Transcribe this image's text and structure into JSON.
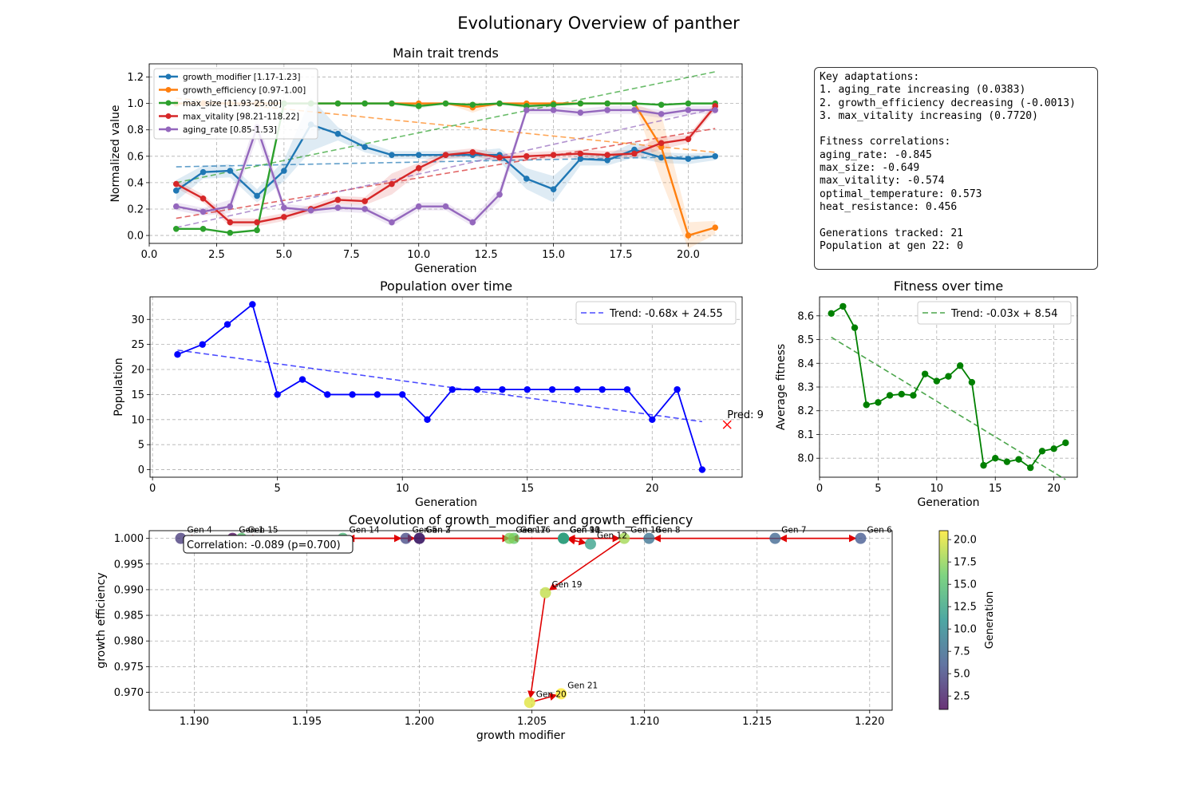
{
  "figure_title": "Evolutionary Overview of panther",
  "summary_lines": [
    "Key adaptations:",
    "1. aging_rate increasing (0.0383)",
    "2. growth_efficiency decreasing (-0.0013)",
    "3. max_vitality increasing (0.7720)",
    "",
    "Fitness correlations:",
    "aging_rate: -0.845",
    "max_size: -0.649",
    "max_vitality: -0.574",
    "optimal_temperature: 0.573",
    "heat_resistance: 0.456",
    "",
    "Generations tracked: 21",
    "Population at gen 22: 0"
  ],
  "chart_data": [
    {
      "id": "traits",
      "type": "line",
      "title": "Main trait trends",
      "xlabel": "Generation",
      "ylabel": "Normalized value",
      "xlim": [
        0,
        22
      ],
      "ylim": [
        -0.06,
        1.3
      ],
      "xticks": [
        0.0,
        2.5,
        5.0,
        7.5,
        10.0,
        12.5,
        15.0,
        17.5,
        20.0
      ],
      "yticks": [
        0.0,
        0.2,
        0.4,
        0.6,
        0.8,
        1.0,
        1.2
      ],
      "grid": true,
      "legend_position": "top-left",
      "x": [
        1,
        2,
        3,
        4,
        5,
        6,
        7,
        8,
        9,
        10,
        11,
        12,
        13,
        14,
        15,
        16,
        17,
        18,
        19,
        20,
        21
      ],
      "series": [
        {
          "name": "growth_modifier [1.17-1.23]",
          "color": "#1f77b4",
          "values": [
            0.34,
            0.48,
            0.49,
            0.3,
            0.49,
            0.84,
            0.77,
            0.67,
            0.61,
            0.61,
            0.61,
            0.61,
            0.61,
            0.43,
            0.35,
            0.58,
            0.57,
            0.65,
            0.59,
            0.58,
            0.6
          ],
          "band": [
            0.08,
            0.05,
            0.05,
            0.05,
            0.08,
            0.2,
            0.05,
            0.04,
            0.03,
            0.03,
            0.03,
            0.03,
            0.05,
            0.08,
            0.1,
            0.05,
            0.04,
            0.06,
            0.04,
            0.04,
            0.03
          ],
          "trend": [
            0.52,
            0.6
          ]
        },
        {
          "name": "growth_efficiency [0.97-1.00]",
          "color": "#ff7f0e",
          "values": [
            1.0,
            1.0,
            1.0,
            1.0,
            1.0,
            1.0,
            1.0,
            1.0,
            1.0,
            1.0,
            1.0,
            0.97,
            1.0,
            1.0,
            1.0,
            1.0,
            1.0,
            1.0,
            0.67,
            0.0,
            0.06
          ],
          "band": [
            0,
            0,
            0,
            0,
            0,
            0,
            0,
            0,
            0,
            0,
            0,
            0.04,
            0,
            0,
            0,
            0,
            0,
            0,
            0.25,
            0.1,
            0.05
          ],
          "trend": [
            1.04,
            0.63
          ]
        },
        {
          "name": "max_size [11.93-25.00]",
          "color": "#2ca02c",
          "values": [
            0.05,
            0.05,
            0.02,
            0.04,
            1.0,
            1.0,
            1.0,
            1.0,
            1.0,
            0.98,
            1.0,
            0.99,
            1.0,
            0.98,
            0.99,
            1.0,
            1.0,
            1.0,
            0.99,
            1.0,
            1.0
          ],
          "band": [
            0,
            0,
            0,
            0,
            0,
            0,
            0,
            0,
            0,
            0.02,
            0,
            0.01,
            0,
            0.02,
            0.01,
            0,
            0,
            0,
            0.01,
            0,
            0
          ],
          "trend": [
            0.4,
            1.24
          ]
        },
        {
          "name": "max_vitality [98.21-118.22]",
          "color": "#d62728",
          "values": [
            0.39,
            0.28,
            0.1,
            0.1,
            0.14,
            0.2,
            0.27,
            0.26,
            0.39,
            0.51,
            0.61,
            0.63,
            0.59,
            0.6,
            0.61,
            0.62,
            0.61,
            0.62,
            0.7,
            0.73,
            0.98
          ],
          "band": [
            0.03,
            0.03,
            0.03,
            0.03,
            0.03,
            0.03,
            0.03,
            0.03,
            0.08,
            0.04,
            0.03,
            0.03,
            0.03,
            0.03,
            0.03,
            0.03,
            0.03,
            0.03,
            0.05,
            0.03,
            0.03
          ],
          "trend": [
            0.13,
            0.81
          ]
        },
        {
          "name": "aging_rate [0.85-1.53]",
          "color": "#9467bd",
          "values": [
            0.22,
            0.18,
            0.22,
            0.82,
            0.21,
            0.19,
            0.21,
            0.2,
            0.1,
            0.22,
            0.22,
            0.1,
            0.31,
            0.95,
            0.95,
            0.93,
            0.95,
            0.95,
            0.92,
            0.95,
            0.95
          ],
          "band": [
            0.03,
            0.03,
            0.05,
            0.08,
            0.03,
            0.03,
            0.03,
            0.03,
            0.03,
            0.03,
            0.03,
            0.03,
            0.05,
            0.03,
            0.03,
            0.03,
            0.03,
            0.03,
            0.03,
            0.03,
            0.03
          ],
          "trend": [
            0.06,
            0.96
          ]
        }
      ]
    },
    {
      "id": "population",
      "type": "line",
      "title": "Population over time",
      "xlabel": "Generation",
      "ylabel": "Population",
      "xlim": [
        -0.1,
        23.6
      ],
      "ylim": [
        -1.5,
        34.5
      ],
      "xticks": [
        0,
        5,
        10,
        15,
        20
      ],
      "yticks": [
        0,
        5,
        10,
        15,
        20,
        25,
        30
      ],
      "grid": true,
      "legend_position": "top-right",
      "x": [
        1,
        2,
        3,
        4,
        5,
        6,
        7,
        8,
        9,
        10,
        11,
        12,
        13,
        14,
        15,
        16,
        17,
        18,
        19,
        20,
        21,
        22
      ],
      "values": [
        23,
        25,
        29,
        33,
        15,
        18,
        15,
        15,
        15,
        15,
        10,
        16,
        16,
        16,
        16,
        16,
        16,
        16,
        16,
        10,
        16,
        0
      ],
      "trend_label": "Trend: -0.68x + 24.55",
      "trend_slope": -0.68,
      "trend_intercept": 24.55,
      "prediction": {
        "x": 23,
        "y": 9,
        "label": "Pred: 9"
      }
    },
    {
      "id": "fitness",
      "type": "line",
      "title": "Fitness over time",
      "xlabel": "Generation",
      "ylabel": "Average fitness",
      "xlim": [
        0,
        22
      ],
      "ylim": [
        7.92,
        8.68
      ],
      "xticks": [
        0,
        5,
        10,
        15,
        20
      ],
      "yticks": [
        8.0,
        8.1,
        8.2,
        8.3,
        8.4,
        8.5,
        8.6
      ],
      "grid": true,
      "legend_position": "top-right",
      "x": [
        1,
        2,
        3,
        4,
        5,
        6,
        7,
        8,
        9,
        10,
        11,
        12,
        13,
        14,
        15,
        16,
        17,
        18,
        19,
        20,
        21
      ],
      "values": [
        8.61,
        8.64,
        8.55,
        8.225,
        8.235,
        8.265,
        8.27,
        8.265,
        8.355,
        8.325,
        8.345,
        8.39,
        8.32,
        7.97,
        8.0,
        7.985,
        7.995,
        7.96,
        8.03,
        8.04,
        8.065
      ],
      "trend_label": "Trend: -0.03x + 8.54",
      "trend_slope": -0.03,
      "trend_intercept": 8.54
    },
    {
      "id": "coevolution",
      "type": "scatter",
      "title": "Coevolution of growth_modifier and growth_efficiency",
      "xlabel": "growth modifier",
      "ylabel": "growth efficiency",
      "xlim": [
        1.188,
        1.221
      ],
      "ylim": [
        0.9665,
        1.0015
      ],
      "xticks": [
        1.19,
        1.195,
        1.2,
        1.205,
        1.21,
        1.215,
        1.22
      ],
      "yticks": [
        0.97,
        0.975,
        0.98,
        0.985,
        0.99,
        0.995,
        1.0
      ],
      "grid": true,
      "annotation": "Correlation: -0.089 (p=0.700)",
      "colorbar_label": "Generation",
      "colorbar_range": [
        1,
        21
      ],
      "colorbar_ticks": [
        2.5,
        5.0,
        7.5,
        10.0,
        12.5,
        15.0,
        17.5,
        20.0
      ],
      "points": [
        {
          "gen": 1,
          "x": 1.1917,
          "y": 1.0,
          "label": "Gen 1"
        },
        {
          "gen": 2,
          "x": 1.2,
          "y": 1.0,
          "label": "Gen 2"
        },
        {
          "gen": 3,
          "x": 1.2,
          "y": 1.0,
          "label": "Gen 3"
        },
        {
          "gen": 4,
          "x": 1.1894,
          "y": 1.0,
          "label": "Gen 4"
        },
        {
          "gen": 5,
          "x": 1.1994,
          "y": 1.0,
          "label": "Gen 5"
        },
        {
          "gen": 6,
          "x": 1.2196,
          "y": 1.0,
          "label": "Gen 6"
        },
        {
          "gen": 7,
          "x": 1.2158,
          "y": 1.0,
          "label": "Gen 7"
        },
        {
          "gen": 8,
          "x": 1.2102,
          "y": 1.0,
          "label": "Gen 8"
        },
        {
          "gen": 9,
          "x": 1.2064,
          "y": 1.0,
          "label": "Gen 9"
        },
        {
          "gen": 10,
          "x": 1.2064,
          "y": 1.0,
          "label": "Gen 10"
        },
        {
          "gen": 11,
          "x": 1.2064,
          "y": 1.0,
          "label": "Gen 11"
        },
        {
          "gen": 12,
          "x": 1.2076,
          "y": 0.9989,
          "label": "Gen 12"
        },
        {
          "gen": 13,
          "x": 1.2064,
          "y": 1.0,
          "label": "Gen 13"
        },
        {
          "gen": 14,
          "x": 1.1966,
          "y": 1.0,
          "label": "Gen 14"
        },
        {
          "gen": 15,
          "x": 1.1921,
          "y": 1.0,
          "label": "Gen 15"
        },
        {
          "gen": 16,
          "x": 1.2042,
          "y": 1.0,
          "label": "Gen 16"
        },
        {
          "gen": 17,
          "x": 1.204,
          "y": 1.0,
          "label": "Gen 17"
        },
        {
          "gen": 18,
          "x": 1.2091,
          "y": 1.0,
          "label": "Gen 18"
        },
        {
          "gen": 19,
          "x": 1.2056,
          "y": 0.9894,
          "label": "Gen 19"
        },
        {
          "gen": 20,
          "x": 1.2049,
          "y": 0.968,
          "label": "Gen 20"
        },
        {
          "gen": 21,
          "x": 1.2063,
          "y": 0.9697,
          "label": "Gen 21"
        }
      ]
    }
  ]
}
